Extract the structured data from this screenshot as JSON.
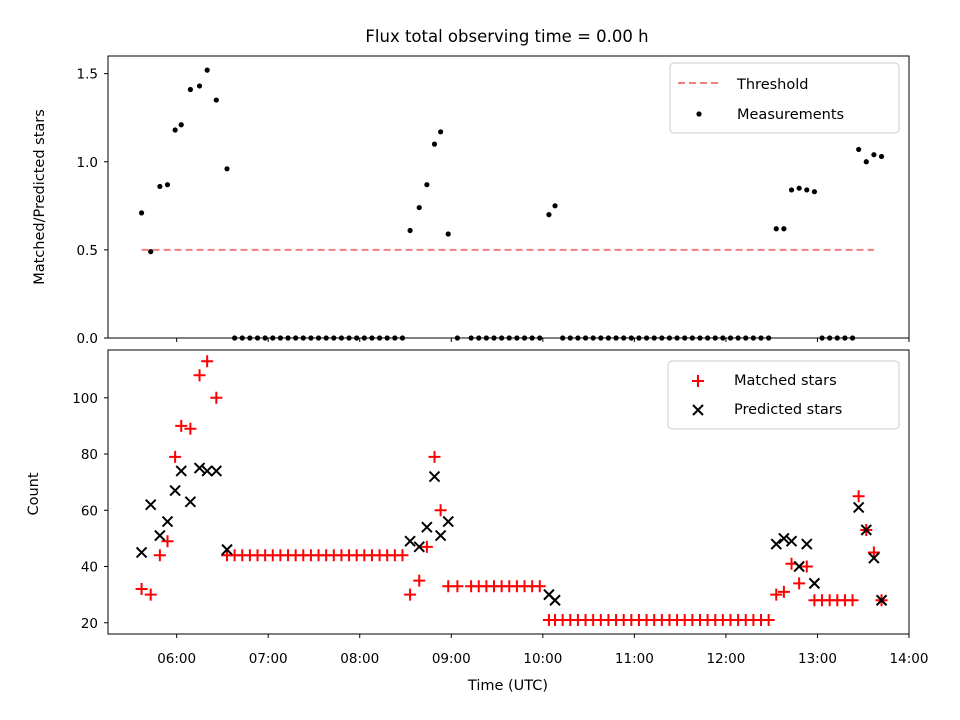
{
  "title": "Flux total observing time = 0.00 h",
  "chart_data": [
    {
      "type": "scatter",
      "ylabel": "Matched/Predicted stars",
      "xlim": [
        "05:15",
        "14:00"
      ],
      "ylim": [
        0,
        1.6
      ],
      "yticks": [
        0.0,
        0.5,
        1.0,
        1.5
      ],
      "ytick_labels": [
        "0.0",
        "0.5",
        "1.0",
        "1.5"
      ],
      "legend_position": "top-right",
      "legend": [
        "Threshold",
        "Measurements"
      ],
      "threshold": {
        "name": "Threshold",
        "value": 0.5,
        "x_start": "05:37",
        "x_end": "13:37",
        "color": "#f08080",
        "style": "dashed"
      },
      "series": [
        {
          "name": "Measurements",
          "marker": "dot",
          "color": "#000000",
          "points": [
            [
              "05:37",
              0.71
            ],
            [
              "05:43",
              0.49
            ],
            [
              "05:49",
              0.86
            ],
            [
              "05:54",
              0.87
            ],
            [
              "05:59",
              1.18
            ],
            [
              "06:03",
              1.21
            ],
            [
              "06:09",
              1.41
            ],
            [
              "06:15",
              1.43
            ],
            [
              "06:20",
              1.52
            ],
            [
              "06:26",
              1.35
            ],
            [
              "06:33",
              0.96
            ],
            [
              "06:38",
              0
            ],
            [
              "06:43",
              0
            ],
            [
              "06:48",
              0
            ],
            [
              "06:53",
              0
            ],
            [
              "06:58",
              0
            ],
            [
              "07:03",
              0
            ],
            [
              "07:08",
              0
            ],
            [
              "07:13",
              0
            ],
            [
              "07:18",
              0
            ],
            [
              "07:23",
              0
            ],
            [
              "07:28",
              0
            ],
            [
              "07:33",
              0
            ],
            [
              "07:38",
              0
            ],
            [
              "07:43",
              0
            ],
            [
              "07:48",
              0
            ],
            [
              "07:53",
              0
            ],
            [
              "07:58",
              0
            ],
            [
              "08:03",
              0
            ],
            [
              "08:08",
              0
            ],
            [
              "08:13",
              0
            ],
            [
              "08:18",
              0
            ],
            [
              "08:23",
              0
            ],
            [
              "08:28",
              0
            ],
            [
              "08:33",
              0.61
            ],
            [
              "08:39",
              0.74
            ],
            [
              "08:44",
              0.87
            ],
            [
              "08:49",
              1.1
            ],
            [
              "08:53",
              1.17
            ],
            [
              "08:58",
              0.59
            ],
            [
              "09:04",
              0
            ],
            [
              "09:13",
              0
            ],
            [
              "09:18",
              0
            ],
            [
              "09:23",
              0
            ],
            [
              "09:28",
              0
            ],
            [
              "09:33",
              0
            ],
            [
              "09:38",
              0
            ],
            [
              "09:43",
              0
            ],
            [
              "09:48",
              0
            ],
            [
              "09:53",
              0
            ],
            [
              "09:58",
              0
            ],
            [
              "10:04",
              0.7
            ],
            [
              "10:08",
              0.75
            ],
            [
              "10:13",
              0
            ],
            [
              "10:18",
              0
            ],
            [
              "10:23",
              0
            ],
            [
              "10:28",
              0
            ],
            [
              "10:33",
              0
            ],
            [
              "10:38",
              0
            ],
            [
              "10:43",
              0
            ],
            [
              "10:48",
              0
            ],
            [
              "10:53",
              0
            ],
            [
              "10:58",
              0
            ],
            [
              "11:03",
              0
            ],
            [
              "11:08",
              0
            ],
            [
              "11:13",
              0
            ],
            [
              "11:18",
              0
            ],
            [
              "11:23",
              0
            ],
            [
              "11:28",
              0
            ],
            [
              "11:33",
              0
            ],
            [
              "11:38",
              0
            ],
            [
              "11:43",
              0
            ],
            [
              "11:48",
              0
            ],
            [
              "11:53",
              0
            ],
            [
              "11:58",
              0
            ],
            [
              "12:03",
              0
            ],
            [
              "12:08",
              0
            ],
            [
              "12:13",
              0
            ],
            [
              "12:18",
              0
            ],
            [
              "12:23",
              0
            ],
            [
              "12:28",
              0
            ],
            [
              "12:33",
              0.62
            ],
            [
              "12:38",
              0.62
            ],
            [
              "12:43",
              0.84
            ],
            [
              "12:48",
              0.85
            ],
            [
              "12:53",
              0.84
            ],
            [
              "12:58",
              0.83
            ],
            [
              "13:03",
              0
            ],
            [
              "13:08",
              0
            ],
            [
              "13:13",
              0
            ],
            [
              "13:18",
              0
            ],
            [
              "13:23",
              0
            ],
            [
              "13:27",
              1.07
            ],
            [
              "13:32",
              1.0
            ],
            [
              "13:37",
              1.04
            ],
            [
              "13:42",
              1.03
            ]
          ]
        }
      ]
    },
    {
      "type": "scatter",
      "ylabel": "Count",
      "xlabel": "Time (UTC)",
      "xlim": [
        "05:15",
        "14:00"
      ],
      "xticks": [
        "06:00",
        "07:00",
        "08:00",
        "09:00",
        "10:00",
        "11:00",
        "12:00",
        "13:00",
        "14:00"
      ],
      "ylim": [
        16,
        117
      ],
      "yticks": [
        20,
        40,
        60,
        80,
        100
      ],
      "ytick_labels": [
        "20",
        "40",
        "60",
        "80",
        "100"
      ],
      "legend_position": "top-right",
      "legend": [
        "Matched stars",
        "Predicted stars"
      ],
      "series": [
        {
          "name": "Matched stars",
          "marker": "plus",
          "color": "#ff0000",
          "points": [
            [
              "05:37",
              32
            ],
            [
              "05:43",
              30
            ],
            [
              "05:49",
              44
            ],
            [
              "05:54",
              49
            ],
            [
              "05:59",
              79
            ],
            [
              "06:03",
              90
            ],
            [
              "06:09",
              89
            ],
            [
              "06:15",
              108
            ],
            [
              "06:20",
              113
            ],
            [
              "06:26",
              100
            ],
            [
              "06:33",
              44
            ],
            [
              "06:38",
              44
            ],
            [
              "06:43",
              44
            ],
            [
              "06:48",
              44
            ],
            [
              "06:53",
              44
            ],
            [
              "06:58",
              44
            ],
            [
              "07:03",
              44
            ],
            [
              "07:08",
              44
            ],
            [
              "07:13",
              44
            ],
            [
              "07:18",
              44
            ],
            [
              "07:23",
              44
            ],
            [
              "07:28",
              44
            ],
            [
              "07:33",
              44
            ],
            [
              "07:38",
              44
            ],
            [
              "07:43",
              44
            ],
            [
              "07:48",
              44
            ],
            [
              "07:53",
              44
            ],
            [
              "07:58",
              44
            ],
            [
              "08:03",
              44
            ],
            [
              "08:08",
              44
            ],
            [
              "08:13",
              44
            ],
            [
              "08:18",
              44
            ],
            [
              "08:23",
              44
            ],
            [
              "08:28",
              44
            ],
            [
              "08:33",
              30
            ],
            [
              "08:39",
              35
            ],
            [
              "08:44",
              47
            ],
            [
              "08:49",
              79
            ],
            [
              "08:53",
              60
            ],
            [
              "08:58",
              33
            ],
            [
              "09:04",
              33
            ],
            [
              "09:13",
              33
            ],
            [
              "09:18",
              33
            ],
            [
              "09:23",
              33
            ],
            [
              "09:28",
              33
            ],
            [
              "09:33",
              33
            ],
            [
              "09:38",
              33
            ],
            [
              "09:43",
              33
            ],
            [
              "09:48",
              33
            ],
            [
              "09:53",
              33
            ],
            [
              "09:58",
              33
            ],
            [
              "10:04",
              21
            ],
            [
              "10:08",
              21
            ],
            [
              "10:13",
              21
            ],
            [
              "10:18",
              21
            ],
            [
              "10:23",
              21
            ],
            [
              "10:28",
              21
            ],
            [
              "10:33",
              21
            ],
            [
              "10:38",
              21
            ],
            [
              "10:43",
              21
            ],
            [
              "10:48",
              21
            ],
            [
              "10:53",
              21
            ],
            [
              "10:58",
              21
            ],
            [
              "11:03",
              21
            ],
            [
              "11:08",
              21
            ],
            [
              "11:13",
              21
            ],
            [
              "11:18",
              21
            ],
            [
              "11:23",
              21
            ],
            [
              "11:28",
              21
            ],
            [
              "11:33",
              21
            ],
            [
              "11:38",
              21
            ],
            [
              "11:43",
              21
            ],
            [
              "11:48",
              21
            ],
            [
              "11:53",
              21
            ],
            [
              "11:58",
              21
            ],
            [
              "12:03",
              21
            ],
            [
              "12:08",
              21
            ],
            [
              "12:13",
              21
            ],
            [
              "12:18",
              21
            ],
            [
              "12:23",
              21
            ],
            [
              "12:28",
              21
            ],
            [
              "12:33",
              30
            ],
            [
              "12:38",
              31
            ],
            [
              "12:43",
              41
            ],
            [
              "12:48",
              34
            ],
            [
              "12:53",
              40
            ],
            [
              "12:58",
              28
            ],
            [
              "13:03",
              28
            ],
            [
              "13:08",
              28
            ],
            [
              "13:13",
              28
            ],
            [
              "13:18",
              28
            ],
            [
              "13:23",
              28
            ],
            [
              "13:27",
              65
            ],
            [
              "13:32",
              53
            ],
            [
              "13:37",
              45
            ],
            [
              "13:42",
              28
            ]
          ]
        },
        {
          "name": "Predicted stars",
          "marker": "x",
          "color": "#000000",
          "points": [
            [
              "05:37",
              45
            ],
            [
              "05:43",
              62
            ],
            [
              "05:49",
              51
            ],
            [
              "05:54",
              56
            ],
            [
              "05:59",
              67
            ],
            [
              "06:03",
              74
            ],
            [
              "06:09",
              63
            ],
            [
              "06:15",
              75
            ],
            [
              "06:20",
              74
            ],
            [
              "06:26",
              74
            ],
            [
              "06:33",
              46
            ],
            [
              "08:33",
              49
            ],
            [
              "08:39",
              47
            ],
            [
              "08:44",
              54
            ],
            [
              "08:49",
              72
            ],
            [
              "08:53",
              51
            ],
            [
              "08:58",
              56
            ],
            [
              "10:04",
              30
            ],
            [
              "10:08",
              28
            ],
            [
              "12:33",
              48
            ],
            [
              "12:38",
              50
            ],
            [
              "12:43",
              49
            ],
            [
              "12:48",
              40
            ],
            [
              "12:53",
              48
            ],
            [
              "12:58",
              34
            ],
            [
              "13:27",
              61
            ],
            [
              "13:32",
              53
            ],
            [
              "13:37",
              43
            ],
            [
              "13:42",
              28
            ]
          ]
        }
      ]
    }
  ]
}
